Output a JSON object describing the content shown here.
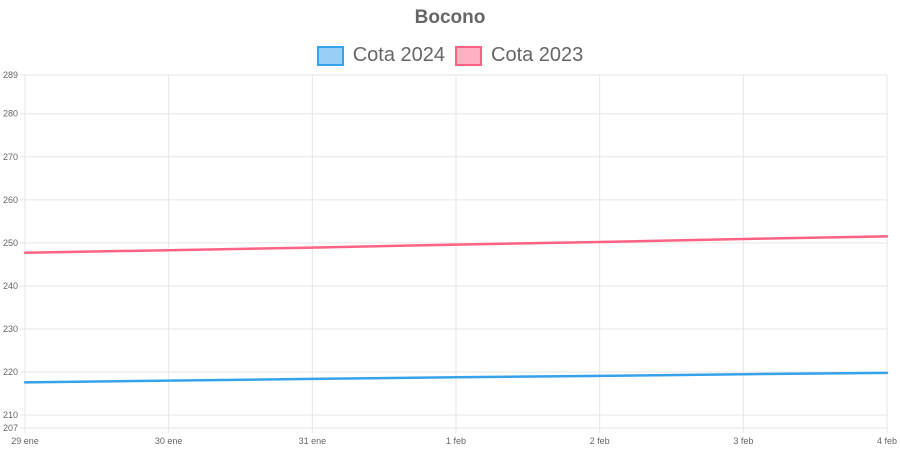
{
  "chart_data": {
    "type": "line",
    "title": "Bocono",
    "x": [
      "29 ene",
      "30 ene",
      "31 ene",
      "1 feb",
      "2 feb",
      "3 feb",
      "4 feb"
    ],
    "yticks": [
      289,
      280,
      270,
      260,
      250,
      240,
      230,
      220,
      210,
      207
    ],
    "ylim": [
      207,
      289
    ],
    "grid": true,
    "legend_position": "top",
    "series": [
      {
        "name": "Cota 2024",
        "color": "#36a2eb",
        "fill": "#9ad0f5",
        "values": [
          217.6,
          218.0,
          218.4,
          218.8,
          219.1,
          219.5,
          219.8
        ]
      },
      {
        "name": "Cota 2023",
        "color": "#ff6384",
        "fill": "#ffb1c1",
        "values": [
          247.7,
          248.3,
          248.9,
          249.6,
          250.2,
          250.9,
          251.5
        ]
      }
    ]
  }
}
